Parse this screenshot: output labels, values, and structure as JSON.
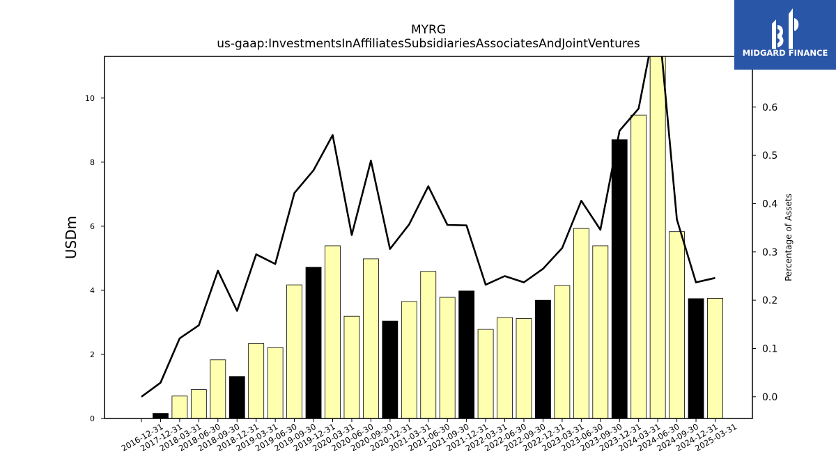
{
  "chart_data": {
    "type": "bar",
    "title": "MYRG",
    "subtitle": "us-gaap:InvestmentsInAffiliatesSubsidiariesAssociatesAndJointVentures",
    "ylabel": "USDm",
    "y2label": "Percentage of Assets",
    "categories": [
      "2016-12-31",
      "2017-12-31",
      "2018-03-31",
      "2018-06-30",
      "2018-09-30",
      "2018-12-31",
      "2019-03-31",
      "2019-06-30",
      "2019-09-30",
      "2019-12-31",
      "2020-03-31",
      "2020-06-30",
      "2020-09-30",
      "2020-12-31",
      "2021-03-31",
      "2021-06-30",
      "2021-09-30",
      "2021-12-31",
      "2022-03-31",
      "2022-06-30",
      "2022-09-30",
      "2022-12-31",
      "2023-03-31",
      "2023-06-30",
      "2023-09-30",
      "2023-12-31",
      "2024-03-31",
      "2024-06-30",
      "2024-09-30",
      "2024-12-31",
      "2025-03-31"
    ],
    "values": [
      0,
      0.16,
      0.7,
      0.9,
      1.83,
      1.31,
      2.34,
      2.21,
      4.17,
      4.72,
      5.39,
      3.19,
      4.98,
      3.04,
      3.65,
      4.59,
      3.78,
      3.98,
      2.78,
      3.15,
      3.12,
      3.69,
      4.15,
      5.93,
      5.39,
      8.7,
      9.47,
      11.4,
      5.83,
      3.74,
      3.75
    ],
    "bar_colors": [
      "#ffffb0",
      "#000000",
      "#ffffb0",
      "#ffffb0",
      "#ffffb0",
      "#000000",
      "#ffffb0",
      "#ffffb0",
      "#ffffb0",
      "#000000",
      "#ffffb0",
      "#ffffb0",
      "#ffffb0",
      "#000000",
      "#ffffb0",
      "#ffffb0",
      "#ffffb0",
      "#000000",
      "#ffffb0",
      "#ffffb0",
      "#ffffb0",
      "#000000",
      "#ffffb0",
      "#ffffb0",
      "#ffffb0",
      "#000000",
      "#ffffb0",
      "#ffffb0",
      "#ffffb0",
      "#000000",
      "#ffffb0"
    ],
    "pct_of_assets": [
      0.0,
      0.029,
      0.121,
      0.148,
      0.261,
      0.178,
      0.295,
      0.275,
      0.422,
      0.469,
      0.542,
      0.335,
      0.489,
      0.306,
      0.357,
      0.436,
      0.356,
      0.355,
      0.232,
      0.25,
      0.237,
      0.265,
      0.308,
      0.406,
      0.346,
      0.551,
      0.597,
      0.8,
      0.367,
      0.237,
      0.246
    ],
    "ylim": [
      0,
      11.3
    ],
    "y2lim": [
      -0.045,
      0.705
    ],
    "yticks": [
      "0",
      "2",
      "4",
      "6",
      "8",
      "10"
    ],
    "y2ticks": [
      "0.0",
      "0.1",
      "0.2",
      "0.3",
      "0.4",
      "0.5",
      "0.6"
    ],
    "grid": false,
    "legend": "none"
  },
  "logo": {
    "text": "MIDGARD FINANCE",
    "bg_color": "#2a56a8"
  }
}
